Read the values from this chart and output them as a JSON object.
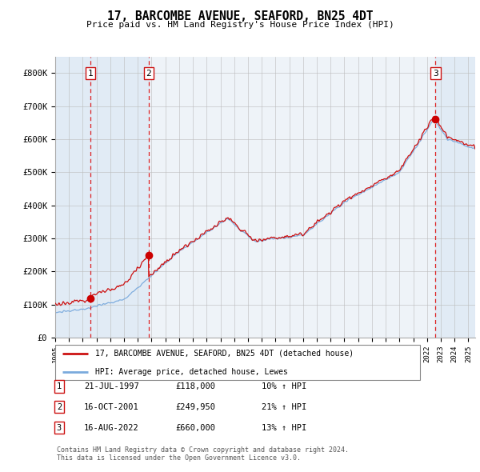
{
  "title": "17, BARCOMBE AVENUE, SEAFORD, BN25 4DT",
  "subtitle": "Price paid vs. HM Land Registry's House Price Index (HPI)",
  "ylim": [
    0,
    850000
  ],
  "yticks": [
    0,
    100000,
    200000,
    300000,
    400000,
    500000,
    600000,
    700000,
    800000
  ],
  "ytick_labels": [
    "£0",
    "£100K",
    "£200K",
    "£300K",
    "£400K",
    "£500K",
    "£600K",
    "£700K",
    "£800K"
  ],
  "xlim_start": 1995.0,
  "xlim_end": 2025.5,
  "transaction_dates": [
    1997.55,
    2001.79,
    2022.62
  ],
  "transaction_prices": [
    118000,
    249950,
    660000
  ],
  "transaction_labels": [
    "1",
    "2",
    "3"
  ],
  "vline_color": "#dd2222",
  "shade_color": "#dce8f5",
  "sale_dot_color": "#cc0000",
  "hpi_line_color": "#7aaadd",
  "price_line_color": "#cc1111",
  "legend_label_red": "17, BARCOMBE AVENUE, SEAFORD, BN25 4DT (detached house)",
  "legend_label_blue": "HPI: Average price, detached house, Lewes",
  "table_rows": [
    [
      "1",
      "21-JUL-1997",
      "£118,000",
      "10% ↑ HPI"
    ],
    [
      "2",
      "16-OCT-2001",
      "£249,950",
      "21% ↑ HPI"
    ],
    [
      "3",
      "16-AUG-2022",
      "£660,000",
      "13% ↑ HPI"
    ]
  ],
  "footer": "Contains HM Land Registry data © Crown copyright and database right 2024.\nThis data is licensed under the Open Government Licence v3.0.",
  "background_color": "#ffffff",
  "plot_bg_color": "#eef3f8"
}
